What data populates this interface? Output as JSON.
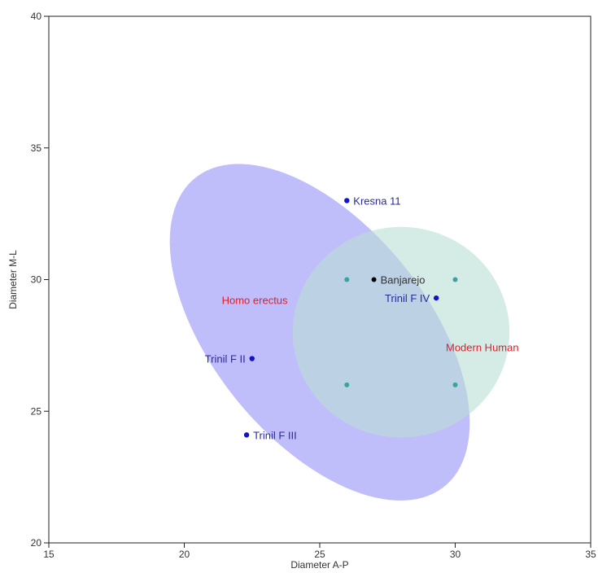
{
  "chart_data": {
    "type": "scatter",
    "xlabel": "Diameter A-P",
    "ylabel": "Diameter M-L",
    "xlim": [
      15,
      35
    ],
    "ylim": [
      20,
      40
    ],
    "xticks": [
      15,
      20,
      25,
      30,
      35
    ],
    "yticks": [
      20,
      25,
      30,
      35,
      40
    ],
    "grid": false,
    "colors": {
      "erectus_fill": "#8c86f7",
      "modern_fill": "#b9ddd6",
      "fossil_point": "#1212c8",
      "fossil_label": "#2a2a9a",
      "reference_point": "#3aa3a0",
      "banjarejo_point": "#000000",
      "banjarejo_label": "#333333",
      "group_label": "#e0202a"
    },
    "ellipses": [
      {
        "label": "Homo erectus",
        "cx": 25.0,
        "cy": 28.0,
        "rx": 4.0,
        "ry": 7.45,
        "rotation_deg": 37.5,
        "label_x": 22.6,
        "label_y": 29.2
      },
      {
        "label": "Modern Human",
        "cx": 28.0,
        "cy": 28.0,
        "rx": 4.0,
        "ry": 4.0,
        "rotation_deg": 0,
        "label_x": 31.0,
        "label_y": 27.4
      }
    ],
    "points": [
      {
        "label": "Kresna 11",
        "x": 26.0,
        "y": 33.0,
        "type": "fossil",
        "label_pos": "right"
      },
      {
        "label": "Banjarejo",
        "x": 27.0,
        "y": 30.0,
        "type": "banjarejo",
        "label_pos": "right"
      },
      {
        "label": "Trinil F IV",
        "x": 29.3,
        "y": 29.3,
        "type": "fossil",
        "label_pos": "left"
      },
      {
        "label": "Trinil F II",
        "x": 22.5,
        "y": 27.0,
        "type": "fossil",
        "label_pos": "left"
      },
      {
        "label": "Trinil F III",
        "x": 22.3,
        "y": 24.1,
        "type": "fossil",
        "label_pos": "right"
      },
      {
        "label": "",
        "x": 26.0,
        "y": 30.0,
        "type": "reference"
      },
      {
        "label": "",
        "x": 30.0,
        "y": 30.0,
        "type": "reference"
      },
      {
        "label": "",
        "x": 26.0,
        "y": 26.0,
        "type": "reference"
      },
      {
        "label": "",
        "x": 30.0,
        "y": 26.0,
        "type": "reference"
      }
    ]
  }
}
